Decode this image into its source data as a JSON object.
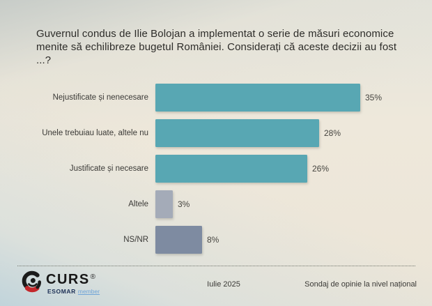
{
  "title": "Guvernul condus de Ilie Bolojan a implementat o serie de măsuri economice menite să echilibreze bugetul României. Considerați că aceste decizii au fost ...?",
  "chart_data": {
    "type": "bar",
    "orientation": "horizontal",
    "title": "Guvernul condus de Ilie Bolojan a implementat o serie de măsuri economice menite să echilibreze bugetul României. Considerați că aceste decizii au fost ...?",
    "categories": [
      "Nejustificate și nenecesare",
      "Unele trebuiau luate, altele nu",
      "Justificate și necesare",
      "Altele",
      "NS/NR"
    ],
    "values": [
      35,
      28,
      26,
      3,
      8
    ],
    "value_labels": [
      "35%",
      "28%",
      "26%",
      "3%",
      "8%"
    ],
    "bar_colors": [
      "#58a7b3",
      "#58a7b3",
      "#58a7b3",
      "#a4abb8",
      "#7e8ba1"
    ],
    "xlim": [
      0,
      35
    ],
    "grid": false,
    "legend": false,
    "xlabel": "",
    "ylabel": ""
  },
  "footer": {
    "logo_text": "CURS",
    "logo_reg": "®",
    "logo_sub_bold": "ESOMAR",
    "logo_sub_light": "member",
    "date": "Iulie 2025",
    "note": "Sondaj de opinie la nivel național"
  },
  "colors": {
    "teal": "#58a7b3",
    "light_slate": "#a4abb8",
    "slate": "#7e8ba1",
    "text_dark": "#2d2c29",
    "text_label": "#3a3936",
    "logo_black": "#1b1b1b",
    "logo_red": "#c3272b",
    "esomar_navy": "#1c2f55",
    "esomar_blue": "#6fa4d8"
  }
}
